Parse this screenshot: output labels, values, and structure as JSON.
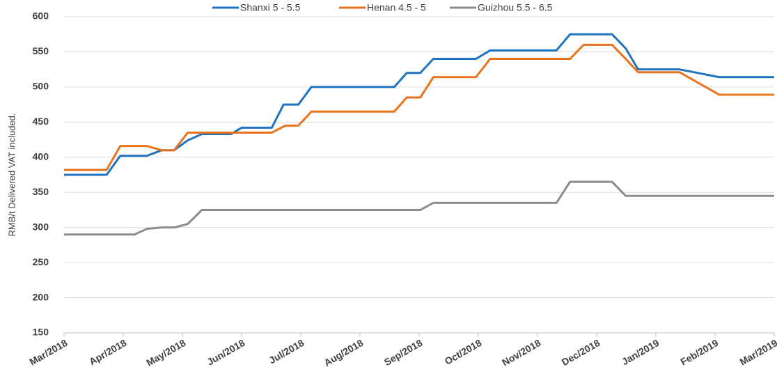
{
  "chart_data": {
    "type": "line",
    "ylabel": "RMB/t Delivered VAT included.",
    "xlim": [
      0,
      12
    ],
    "ylim": [
      150,
      600
    ],
    "xticks": [
      {
        "value": 0,
        "label": "Mar/2018"
      },
      {
        "value": 1,
        "label": "Apr/2018"
      },
      {
        "value": 2,
        "label": "May/2018"
      },
      {
        "value": 3,
        "label": "Jun/2018"
      },
      {
        "value": 4,
        "label": "Jul/2018"
      },
      {
        "value": 5,
        "label": "Aug/2018"
      },
      {
        "value": 6,
        "label": "Sep/2018"
      },
      {
        "value": 7,
        "label": "Oct/2018"
      },
      {
        "value": 8,
        "label": "Nov/2018"
      },
      {
        "value": 9,
        "label": "Dec/2018"
      },
      {
        "value": 10,
        "label": "Jan/2019"
      },
      {
        "value": 11,
        "label": "Feb/2019"
      },
      {
        "value": 12,
        "label": "Mar/2019"
      }
    ],
    "yticks": [
      150,
      200,
      250,
      300,
      350,
      400,
      450,
      500,
      550,
      600
    ],
    "grid": true,
    "legend": "top",
    "series": [
      {
        "name": "Shanxi 5 - 5.5",
        "color": "#1f73c0",
        "x": [
          0,
          0.72,
          0.95,
          1.4,
          1.65,
          1.86,
          2.09,
          2.33,
          2.82,
          3.0,
          3.51,
          3.71,
          3.96,
          4.18,
          5.58,
          5.79,
          6.02,
          6.24,
          6.96,
          7.2,
          8.32,
          8.55,
          9.26,
          9.49,
          9.7,
          10.4,
          11.07,
          12.0
        ],
        "values": [
          375,
          375,
          402,
          402,
          410,
          410,
          424,
          433,
          433,
          442,
          442,
          475,
          475,
          500,
          500,
          520,
          520,
          540,
          540,
          552,
          552,
          575,
          575,
          555,
          525,
          525,
          514,
          514
        ]
      },
      {
        "name": "Henan 4.5 - 5",
        "color": "#e8731c",
        "x": [
          0,
          0.72,
          0.95,
          1.4,
          1.65,
          1.86,
          2.09,
          3.51,
          3.74,
          3.96,
          4.18,
          5.58,
          5.79,
          6.02,
          6.24,
          6.96,
          7.2,
          8.55,
          8.78,
          9.26,
          9.49,
          9.7,
          10.4,
          11.07,
          12.0
        ],
        "values": [
          382,
          382,
          416,
          416,
          410,
          410,
          435,
          435,
          445,
          445,
          465,
          465,
          485,
          485,
          514,
          514,
          540,
          540,
          560,
          560,
          540,
          521,
          521,
          489,
          489
        ]
      },
      {
        "name": "Guizhou 5.5 - 6.5",
        "color": "#8c8c8c",
        "x": [
          0,
          1.19,
          1.4,
          1.65,
          1.86,
          2.09,
          2.33,
          6.02,
          6.24,
          8.32,
          8.55,
          9.26,
          9.49,
          12.0
        ],
        "values": [
          290,
          290,
          298,
          300,
          300,
          305,
          325,
          325,
          335,
          335,
          365,
          365,
          345,
          345
        ]
      }
    ]
  }
}
